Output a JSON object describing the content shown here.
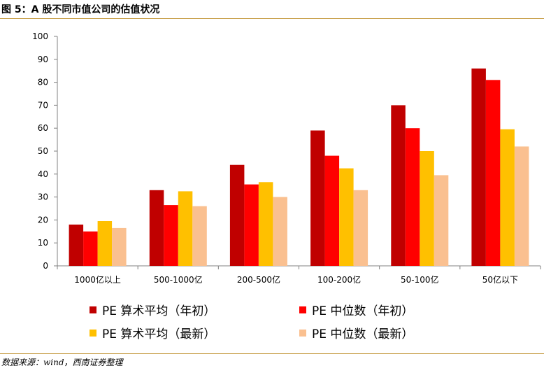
{
  "header": {
    "figure_title": "图 5：A 股不同市值公司的估值状况"
  },
  "footer": {
    "source": "数据来源：wind，西南证券整理"
  },
  "chart_data": {
    "type": "bar",
    "title": "A 股不同市值公司的估值状况",
    "xlabel": "",
    "ylabel": "",
    "ylim": [
      0,
      100
    ],
    "yticks": [
      0,
      10,
      20,
      30,
      40,
      50,
      60,
      70,
      80,
      90,
      100
    ],
    "grid": false,
    "legend_position": "bottom",
    "categories": [
      "1000亿以上",
      "500-1000亿",
      "200-500亿",
      "100-200亿",
      "50-100亿",
      "50亿以下"
    ],
    "series": [
      {
        "name": "PE 算术平均（年初）",
        "color": "#c00000",
        "values": [
          18,
          33,
          44,
          59,
          70,
          86
        ]
      },
      {
        "name": "PE 中位数（年初）",
        "color": "#ff0000",
        "values": [
          15,
          26.5,
          35.5,
          48,
          60,
          81
        ]
      },
      {
        "name": "PE 算术平均（最新）",
        "color": "#ffc000",
        "values": [
          19.5,
          32.5,
          36.5,
          42.5,
          50,
          59.5
        ]
      },
      {
        "name": "PE 中位数（最新）",
        "color": "#fac090",
        "values": [
          16.5,
          26,
          30,
          33,
          39.5,
          52
        ]
      }
    ]
  }
}
